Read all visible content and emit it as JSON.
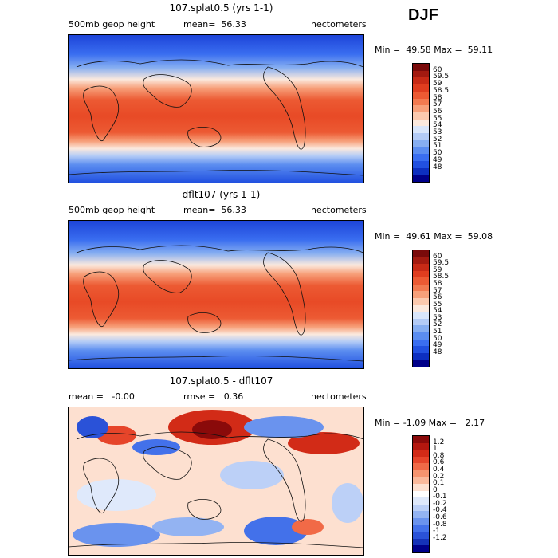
{
  "season": "DJF",
  "panels": [
    {
      "title": "107.splat0.5 (yrs 1-1)",
      "left_label": "500mb geop height",
      "center_label": "mean=  56.33",
      "right_label": "hectometers",
      "minmax": "Min =  49.58 Max =  59.11"
    },
    {
      "title": "dflt107 (yrs 1-1)",
      "left_label": "500mb geop height",
      "center_label": "mean=  56.33",
      "right_label": "hectometers",
      "minmax": "Min =  49.61 Max =  59.08"
    },
    {
      "title": "107.splat0.5 - dflt107",
      "left_label": "mean =   -0.00",
      "center_label": "rmse =   0.36",
      "right_label": "hectometers",
      "minmax": "Min = -1.09 Max =   2.17"
    }
  ],
  "colorbar_abs": {
    "labels": [
      "60",
      "59.5",
      "59",
      "58.5",
      "58",
      "57",
      "56",
      "55",
      "54",
      "53",
      "52",
      "51",
      "50",
      "49",
      "48"
    ],
    "colors": [
      "#7a0a0a",
      "#a31a10",
      "#c72a16",
      "#df3d1f",
      "#ec5a33",
      "#f27a50",
      "#f7a07a",
      "#fbc9ae",
      "#fbe9de",
      "#d9e6fb",
      "#b3cbf6",
      "#86aef1",
      "#5b8df0",
      "#3a6ef0",
      "#2150e0",
      "#0d2fc0",
      "#00008a"
    ]
  },
  "colorbar_diff": {
    "labels": [
      "1.2",
      "1",
      "0.8",
      "0.6",
      "0.4",
      "0.2",
      "0.1",
      "0",
      "-0.1",
      "-0.2",
      "-0.4",
      "-0.6",
      "-0.8",
      "-1",
      "-1.2"
    ],
    "colors": [
      "#8a0a0a",
      "#b3170f",
      "#d22b17",
      "#e6452a",
      "#f16a47",
      "#f6946f",
      "#fab99b",
      "#fde0d0",
      "#ffffff",
      "#dfe9fb",
      "#bcd0f7",
      "#93b3f2",
      "#6a93ee",
      "#4371ea",
      "#2a52d8",
      "#1532b8",
      "#00008a"
    ]
  }
}
